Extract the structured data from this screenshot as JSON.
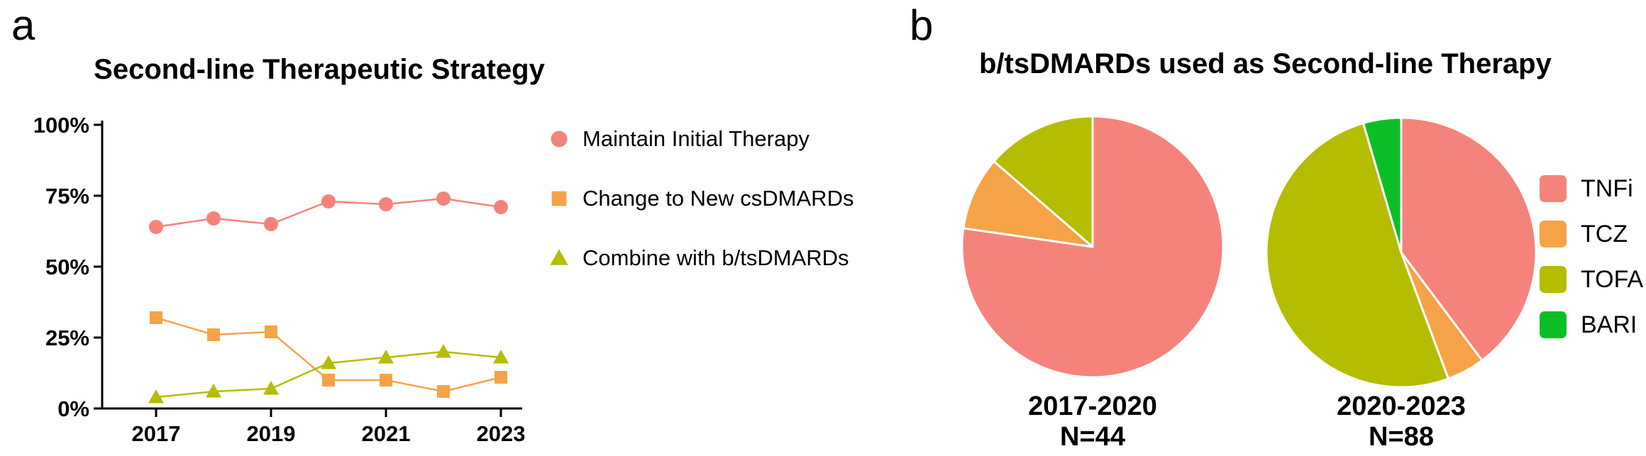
{
  "panels": {
    "a": "a",
    "b": "b"
  },
  "background_color": "#ffffff",
  "text_color": "#000000",
  "chart_data": [
    {
      "type": "line",
      "title": "Second-line Therapeutic Strategy",
      "x": [
        2017,
        2018,
        2019,
        2020,
        2021,
        2022,
        2023
      ],
      "x_ticks_at": [
        2017,
        2019,
        2021,
        2023
      ],
      "x_tick_labels": [
        "2017",
        "2019",
        "2021",
        "2023"
      ],
      "ylim": [
        0,
        100
      ],
      "y_ticks": [
        {
          "value": 0,
          "label": "0%"
        },
        {
          "value": 25,
          "label": "25%"
        },
        {
          "value": 50,
          "label": "50%"
        },
        {
          "value": 75,
          "label": "75%"
        },
        {
          "value": 100,
          "label": "100%"
        }
      ],
      "grid": false,
      "legend_position": "right",
      "series": [
        {
          "name": "Maintain Initial Therapy",
          "marker": "circle",
          "color": "#F6837B",
          "values": [
            64,
            67,
            65,
            73,
            72,
            74,
            71
          ]
        },
        {
          "name": "Change to New csDMARDs",
          "marker": "square",
          "color": "#F6A348",
          "values": [
            32,
            26,
            27,
            10,
            10,
            6,
            11
          ]
        },
        {
          "name": "Combine with b/tsDMARDs",
          "marker": "triangle",
          "color": "#B4BD00",
          "values": [
            4,
            6,
            7,
            16,
            18,
            20,
            18
          ]
        }
      ]
    },
    {
      "type": "pie",
      "title": "b/tsDMARDs used as Second-line Therapy",
      "categories": [
        "TNFi",
        "TCZ",
        "TOFA",
        "BARI"
      ],
      "colors": [
        "#F6837B",
        "#F6A348",
        "#B4BD00",
        "#0BBE28"
      ],
      "slice_border_color": "#ffffff",
      "legend_position": "right",
      "pies": [
        {
          "label": "2017-2020",
          "n_label": "N=44",
          "total": 44,
          "values": [
            34,
            4,
            6,
            0
          ]
        },
        {
          "label": "2020-2023",
          "n_label": "N=88",
          "total": 88,
          "values": [
            35,
            4,
            45,
            4
          ]
        }
      ]
    }
  ]
}
